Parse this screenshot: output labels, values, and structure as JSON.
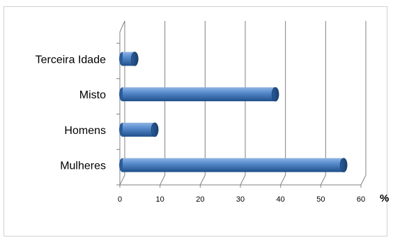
{
  "chart_data": {
    "type": "bar",
    "orientation": "horizontal",
    "style": "3d-cylinder",
    "categories": [
      "Mulheres",
      "Homens",
      "Misto",
      "Terceira Idade"
    ],
    "values": [
      55,
      8,
      38,
      3
    ],
    "xlim": [
      0,
      60
    ],
    "xticks": [
      "0",
      "10",
      "20",
      "30",
      "40",
      "50",
      "60"
    ],
    "unit_label": "%",
    "grid": "vertical",
    "legend": "none",
    "colors": {
      "bar": "#4a7ebb",
      "bar_dark": "#1f4f8a",
      "bar_light": "#8fb4e3",
      "grid": "#808080"
    }
  }
}
